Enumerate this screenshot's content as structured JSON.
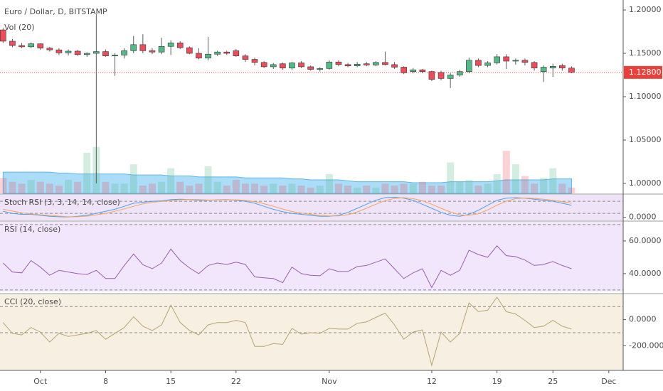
{
  "chart_data": [
    {
      "type": "candlestick",
      "title": "Euro / Dollar, D, BITSTAMP",
      "categories": [
        null,
        null,
        null,
        null,
        "Oct",
        null,
        null,
        null,
        null,
        null,
        null,
        "8",
        null,
        null,
        null,
        null,
        null,
        null,
        "15",
        null,
        null,
        null,
        null,
        null,
        null,
        "22",
        null,
        null,
        null,
        null,
        null,
        null,
        null,
        null,
        null,
        "Nov",
        null,
        null,
        null,
        null,
        null,
        null,
        null,
        null,
        null,
        null,
        "12",
        null,
        null,
        null,
        null,
        null,
        null,
        "19",
        null,
        null,
        null,
        null,
        null,
        "25",
        null,
        null,
        null,
        null,
        null,
        "Dec",
        null
      ],
      "open": [
        1.177,
        1.164,
        1.159,
        1.1575,
        1.161,
        1.156,
        1.154,
        1.1505,
        1.1525,
        1.1485,
        1.15,
        1.152,
        1.147,
        1.148,
        1.153,
        1.16,
        1.153,
        1.1515,
        1.158,
        1.162,
        1.1565,
        1.15,
        1.1445,
        1.149,
        1.1515,
        1.153,
        1.147,
        1.143,
        1.1395,
        1.1345,
        1.138,
        1.133,
        1.139,
        1.1345,
        1.1315,
        1.1325,
        1.14,
        1.137,
        1.1355,
        1.138,
        1.1365,
        1.1395,
        1.137,
        1.134,
        1.129,
        1.131,
        1.129,
        1.128,
        1.121,
        1.125,
        1.129,
        1.142,
        1.136,
        1.139,
        1.146,
        1.141,
        1.142,
        1.1395,
        1.129,
        1.133,
        1.136,
        1.133,
        null,
        null,
        null,
        null,
        null
      ],
      "high": [
        1.179,
        1.1665,
        1.162,
        1.1625,
        1.1615,
        1.1575,
        1.156,
        1.1545,
        1.154,
        1.151,
        1.195,
        1.1545,
        1.15,
        1.156,
        1.17,
        1.172,
        1.156,
        1.168,
        1.165,
        1.164,
        1.158,
        1.156,
        1.169,
        1.153,
        1.153,
        1.155,
        1.149,
        1.145,
        1.141,
        1.139,
        1.1395,
        1.14,
        1.141,
        1.136,
        1.134,
        1.142,
        1.142,
        1.139,
        1.14,
        1.14,
        1.141,
        1.152,
        1.14,
        1.135,
        1.133,
        1.132,
        1.13,
        1.13,
        1.127,
        1.131,
        1.145,
        1.144,
        1.141,
        1.149,
        1.149,
        1.144,
        1.144,
        1.141,
        1.136,
        1.138,
        1.138,
        1.135,
        null,
        null,
        null,
        null,
        null
      ],
      "low": [
        1.162,
        1.157,
        1.156,
        1.156,
        1.154,
        1.152,
        1.148,
        1.1475,
        1.147,
        1.146,
        1.0,
        1.146,
        1.124,
        1.144,
        1.15,
        1.15,
        1.149,
        1.149,
        1.148,
        1.155,
        1.149,
        1.143,
        1.142,
        1.147,
        1.148,
        1.146,
        1.14,
        1.136,
        1.133,
        1.132,
        1.131,
        1.131,
        1.133,
        1.13,
        1.129,
        1.131,
        1.135,
        1.134,
        1.134,
        1.135,
        1.135,
        1.136,
        1.132,
        1.126,
        1.127,
        1.127,
        1.118,
        1.119,
        1.11,
        1.123,
        1.127,
        1.134,
        1.134,
        1.137,
        1.132,
        1.137,
        1.136,
        1.13,
        1.117,
        1.123,
        1.13,
        1.127,
        null,
        null,
        null,
        null,
        null
      ],
      "close": [
        1.164,
        1.159,
        1.1575,
        1.161,
        1.156,
        1.154,
        1.1505,
        1.1525,
        1.1485,
        1.15,
        1.152,
        1.147,
        1.148,
        1.153,
        1.16,
        1.153,
        1.1515,
        1.158,
        1.162,
        1.1565,
        1.15,
        1.1445,
        1.149,
        1.1515,
        1.15,
        1.147,
        1.143,
        1.1395,
        1.1345,
        1.137,
        1.133,
        1.139,
        1.1345,
        1.1315,
        1.1325,
        1.14,
        1.137,
        1.1355,
        1.1375,
        1.1365,
        1.1395,
        1.137,
        1.134,
        1.1275,
        1.131,
        1.129,
        1.12,
        1.121,
        1.125,
        1.129,
        1.142,
        1.136,
        1.139,
        1.146,
        1.141,
        1.142,
        1.1395,
        1.133,
        1.134,
        1.135,
        1.133,
        1.128,
        null,
        null,
        null,
        null,
        null
      ],
      "up_color": "#53b987",
      "down_color": "#eb4d5c",
      "ylim": [
        0.9885,
        1.2115
      ],
      "yticks": [
        {
          "value": 1.2,
          "label": "1.20000"
        },
        {
          "value": 1.15,
          "label": "1.15000"
        },
        {
          "value": 1.1,
          "label": "1.10000"
        },
        {
          "value": 1.05,
          "label": "1.05000"
        },
        {
          "value": 1.0,
          "label": "1.00000"
        }
      ],
      "last_price": {
        "value": 1.128,
        "label": "1.12800"
      },
      "last_price_color": "#e8413b",
      "volume": {
        "title": "Vol (20)",
        "ylim": [
          0,
          100
        ],
        "ma_color": "#8fd0f5",
        "values": [
          8,
          6,
          5,
          7,
          6,
          5,
          4,
          7,
          6,
          21,
          24,
          6,
          5,
          5,
          15,
          4,
          5,
          6,
          13,
          6,
          4,
          5,
          14,
          6,
          4,
          7,
          5,
          5,
          4,
          5,
          4,
          5,
          4,
          3,
          4,
          10,
          5,
          4,
          3,
          4,
          3,
          5,
          4,
          5,
          5,
          6,
          4,
          4,
          16,
          6,
          7,
          4,
          5,
          10,
          22,
          15,
          9,
          5,
          8,
          13,
          5,
          3,
          null,
          null,
          null,
          null,
          null
        ],
        "ma": [
          11,
          11,
          11,
          11,
          11,
          11,
          10.5,
          10.5,
          10,
          10,
          10,
          10,
          10,
          10,
          9.5,
          9.5,
          9.5,
          9.5,
          9,
          9,
          9,
          8.5,
          8.5,
          8.5,
          8.5,
          8.5,
          8,
          8,
          8,
          8,
          8,
          7.5,
          7.5,
          7,
          7,
          7,
          7,
          6.5,
          6,
          6,
          6,
          6,
          6,
          6,
          5.5,
          5.5,
          5.5,
          5.5,
          6,
          6,
          6,
          6,
          6,
          6.5,
          7,
          7,
          7,
          7,
          7,
          7.5,
          7.5,
          7.5,
          null,
          null,
          null,
          null,
          null
        ]
      }
    },
    {
      "type": "line",
      "title": "Stoch RSI (3, 3, 14, 14, close)",
      "background": "#efe3f8",
      "ylim": [
        -15,
        112
      ],
      "yticks": [
        {
          "value": 0,
          "label": "0.0000"
        }
      ],
      "bands": [
        20,
        80
      ],
      "series": [
        {
          "color": "#4da3e8",
          "values": [
            30,
            20,
            15,
            15,
            10,
            5,
            3,
            2,
            5,
            10,
            20,
            30,
            40,
            55,
            70,
            75,
            80,
            82,
            88,
            90,
            88,
            85,
            85,
            87,
            88,
            85,
            80,
            70,
            55,
            40,
            28,
            20,
            15,
            10,
            5,
            5,
            10,
            25,
            45,
            65,
            85,
            98,
            100,
            95,
            85,
            65,
            45,
            25,
            10,
            5,
            15,
            35,
            60,
            85,
            95,
            98,
            95,
            90,
            85,
            80,
            70,
            60,
            null,
            null,
            null,
            null,
            null
          ]
        },
        {
          "color": "#f4a460",
          "values": [
            40,
            32,
            22,
            17,
            13,
            10,
            6,
            3,
            3,
            6,
            12,
            20,
            30,
            42,
            55,
            67,
            75,
            79,
            83,
            87,
            89,
            88,
            86,
            86,
            87,
            87,
            84,
            78,
            68,
            55,
            41,
            29,
            21,
            15,
            10,
            7,
            7,
            13,
            27,
            45,
            65,
            83,
            94,
            98,
            93,
            82,
            65,
            45,
            27,
            13,
            10,
            18,
            37,
            60,
            80,
            93,
            96,
            94,
            90,
            85,
            78,
            70,
            null,
            null,
            null,
            null,
            null
          ]
        }
      ]
    },
    {
      "type": "line",
      "title": "RSI (14, close)",
      "background": "#f1e6fb",
      "ylim": [
        29.1,
        71.7
      ],
      "yticks": [
        {
          "value": 60,
          "label": "60.0000"
        },
        {
          "value": 40,
          "label": "40.0000"
        }
      ],
      "bands": [
        30,
        70
      ],
      "series": [
        {
          "color": "#9a5fb0",
          "values": [
            46.5,
            41,
            40.5,
            48,
            44,
            39,
            42,
            41,
            40,
            39.5,
            42,
            37,
            37,
            45,
            52,
            45.5,
            43,
            46.5,
            55,
            48,
            43.5,
            40,
            45,
            46.5,
            45.6,
            47,
            45.6,
            38,
            37.5,
            37,
            34.5,
            44,
            40,
            39,
            38.7,
            43,
            41.3,
            41.3,
            44.3,
            45,
            47,
            49,
            43,
            37,
            40.5,
            43,
            31.5,
            42,
            39,
            42,
            54.3,
            51.7,
            50,
            57,
            51,
            50.4,
            48.3,
            45,
            45.6,
            47.4,
            45,
            43,
            null,
            null,
            null,
            null,
            null
          ]
        }
      ]
    },
    {
      "type": "line",
      "title": "CCI (20, close)",
      "background": "#f6efe2",
      "ylim": [
        -383,
        194
      ],
      "yticks": [
        {
          "value": 0,
          "label": "0.0000"
        },
        {
          "value": -200,
          "label": "-200.0000"
        }
      ],
      "bands": [
        -100,
        100
      ],
      "series": [
        {
          "color": "#b8a570",
          "values": [
            -22,
            -105,
            -117,
            -60,
            -95,
            -172,
            -105,
            -128,
            -117,
            -105,
            -83,
            -150,
            -105,
            -60,
            22,
            -50,
            -83,
            -40,
            111,
            -22,
            -83,
            -117,
            -40,
            -22,
            -22,
            -5,
            -22,
            -205,
            -205,
            -183,
            -189,
            -67,
            -111,
            -100,
            -105,
            -67,
            -72,
            -72,
            -28,
            -17,
            17,
            50,
            -40,
            -150,
            -95,
            -78,
            -350,
            -95,
            -172,
            -105,
            128,
            61,
            72,
            172,
            61,
            44,
            -5,
            -60,
            -50,
            -5,
            -50,
            -72,
            null,
            null,
            null,
            null,
            null
          ]
        }
      ]
    }
  ]
}
